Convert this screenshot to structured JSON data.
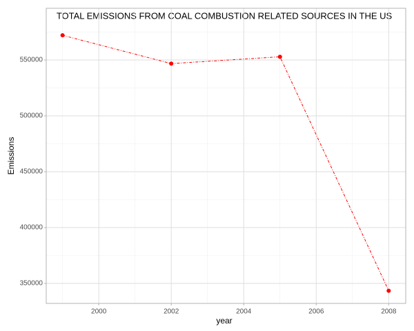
{
  "chart_data": {
    "type": "line",
    "title": "TOTAL EMISSIONS FROM COAL COMBUSTION RELATED SOURCES IN THE US",
    "xlabel": "year",
    "ylabel": "Emissions",
    "x": [
      1999,
      2002,
      2005,
      2008
    ],
    "series": [
      {
        "name": "Emissions",
        "color": "#ff0000",
        "values": [
          572126,
          546789,
          552881,
          343432
        ]
      }
    ],
    "xlim": [
      1998.55,
      2008.47
    ],
    "xticks": [
      2000,
      2002,
      2004,
      2006,
      2008
    ],
    "ylim": [
      332100,
      596300
    ],
    "yticks": [
      350000,
      400000,
      450000,
      500000,
      550000
    ],
    "grid": true,
    "minor_grid": true
  }
}
